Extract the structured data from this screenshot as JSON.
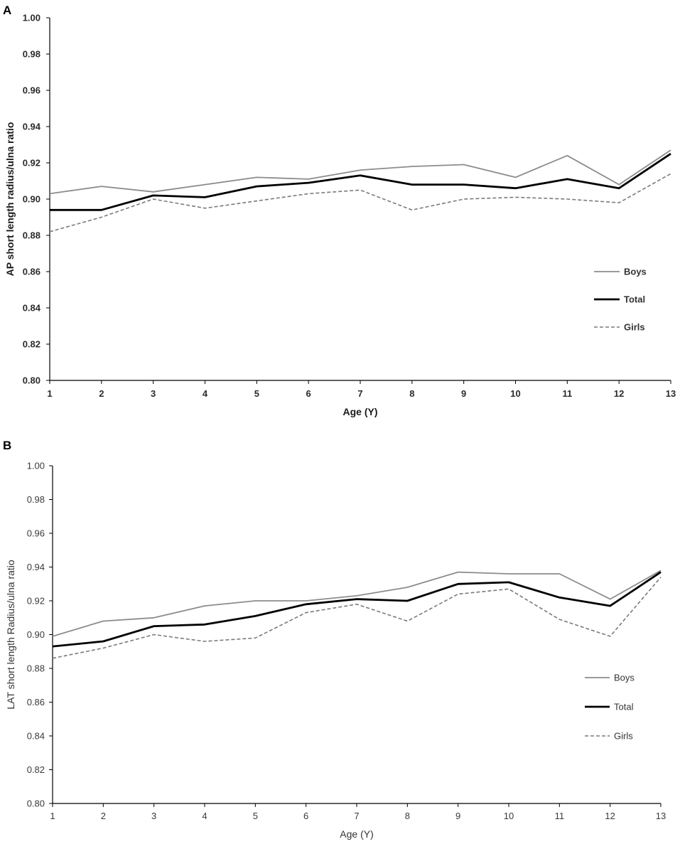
{
  "chart_data": [
    {
      "panel": "A",
      "type": "line",
      "title": "",
      "xlabel": "Age (Y)",
      "ylabel": "AP short length radius/ulna ratio",
      "categories": [
        "1",
        "2",
        "3",
        "4",
        "5",
        "6",
        "7",
        "8",
        "9",
        "10",
        "11",
        "12",
        "13"
      ],
      "ylim": [
        0.8,
        1.0
      ],
      "yticks": [
        "0.80",
        "0.82",
        "0.84",
        "0.86",
        "0.88",
        "0.90",
        "0.92",
        "0.94",
        "0.96",
        "0.98",
        "1.00"
      ],
      "legend_position": "right",
      "series": [
        {
          "name": "Boys",
          "style": "solid-gray",
          "values": [
            0.903,
            0.907,
            0.904,
            0.908,
            0.912,
            0.911,
            0.916,
            0.918,
            0.919,
            0.912,
            0.924,
            0.908,
            0.927
          ]
        },
        {
          "name": "Total",
          "style": "solid-black",
          "values": [
            0.894,
            0.894,
            0.902,
            0.901,
            0.907,
            0.909,
            0.913,
            0.908,
            0.908,
            0.906,
            0.911,
            0.906,
            0.925
          ]
        },
        {
          "name": "Girls",
          "style": "dashed-gray",
          "values": [
            0.882,
            0.89,
            0.9,
            0.895,
            0.899,
            0.903,
            0.905,
            0.894,
            0.9,
            0.901,
            0.9,
            0.898,
            0.914
          ]
        }
      ]
    },
    {
      "panel": "B",
      "type": "line",
      "title": "",
      "xlabel": "Age (Y)",
      "ylabel": "LAT short length Radius/ulna ratio",
      "categories": [
        "1",
        "2",
        "3",
        "4",
        "5",
        "6",
        "7",
        "8",
        "9",
        "10",
        "11",
        "12",
        "13"
      ],
      "ylim": [
        0.8,
        1.0
      ],
      "yticks": [
        "0.80",
        "0.82",
        "0.84",
        "0.86",
        "0.88",
        "0.90",
        "0.92",
        "0.94",
        "0.96",
        "0.98",
        "1.00"
      ],
      "legend_position": "right",
      "series": [
        {
          "name": "Boys",
          "style": "solid-gray",
          "values": [
            0.899,
            0.908,
            0.91,
            0.917,
            0.92,
            0.92,
            0.923,
            0.928,
            0.937,
            0.936,
            0.936,
            0.921,
            0.938
          ]
        },
        {
          "name": "Total",
          "style": "solid-black",
          "values": [
            0.893,
            0.896,
            0.905,
            0.906,
            0.911,
            0.918,
            0.921,
            0.92,
            0.93,
            0.931,
            0.922,
            0.917,
            0.937
          ]
        },
        {
          "name": "Girls",
          "style": "dashed-gray",
          "values": [
            0.886,
            0.892,
            0.9,
            0.896,
            0.898,
            0.913,
            0.918,
            0.908,
            0.924,
            0.927,
            0.909,
            0.899,
            0.934
          ]
        }
      ]
    }
  ],
  "series_colors": {
    "Boys": "#8c8c8c",
    "Total": "#000000",
    "Girls": "#7a7a7a"
  }
}
